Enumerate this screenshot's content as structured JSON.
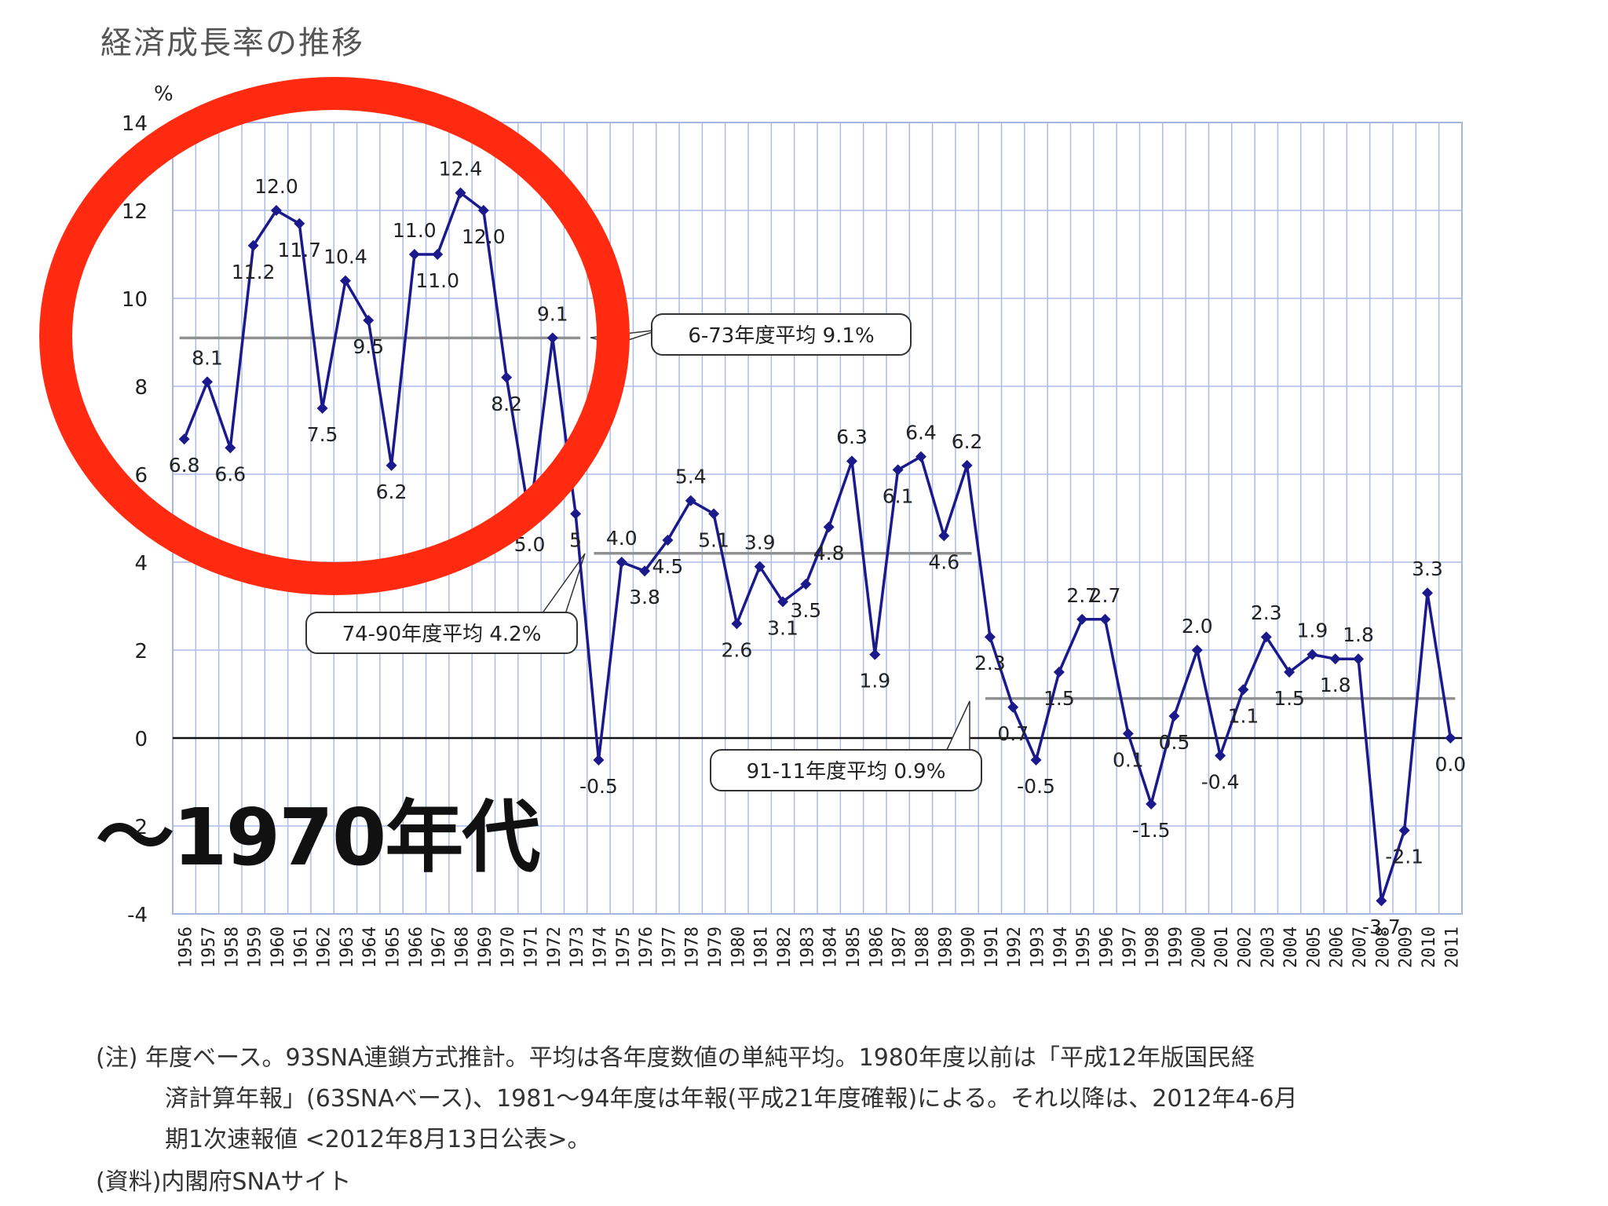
{
  "title": "経済成長率の推移",
  "notes": [
    "(注) 年度ベース。93SNA連鎖方式推計。平均は各年度数値の単純平均。1980年度以前は「平成12年版国民経",
    "済計算年報」(63SNAベース)、1981〜94年度は年報(平成21年度確報)による。それ以降は、2012年4-6月",
    "期1次速報値 <2012年8月13日公表>。"
  ],
  "source": "(資料)内閣府SNAサイト",
  "overlay_label": "〜1970年代",
  "colors": {
    "line": "#1a1a8c",
    "grid": "#aabbe8",
    "avg": "#909090",
    "circle": "#ff2a10"
  },
  "chart_data": {
    "type": "line",
    "ylabel": "%",
    "ylim": [
      -4,
      14
    ],
    "yticks": [
      -4,
      -2,
      0,
      2,
      4,
      6,
      8,
      10,
      12,
      14
    ],
    "grid": true,
    "x": [
      "1956",
      "1957",
      "1958",
      "1959",
      "1960",
      "1961",
      "1962",
      "1963",
      "1964",
      "1965",
      "1966",
      "1967",
      "1968",
      "1969",
      "1970",
      "1971",
      "1972",
      "1973",
      "1974",
      "1975",
      "1976",
      "1977",
      "1978",
      "1979",
      "1980",
      "1981",
      "1982",
      "1983",
      "1984",
      "1985",
      "1986",
      "1987",
      "1988",
      "1989",
      "1990",
      "1991",
      "1992",
      "1993",
      "1994",
      "1995",
      "1996",
      "1997",
      "1998",
      "1999",
      "2000",
      "2001",
      "2002",
      "2003",
      "2004",
      "2005",
      "2006",
      "2007",
      "2008",
      "2009",
      "2010",
      "2011"
    ],
    "values": [
      6.8,
      8.1,
      6.6,
      11.2,
      12.0,
      11.7,
      7.5,
      10.4,
      9.5,
      6.2,
      11.0,
      11.0,
      12.4,
      12.0,
      8.2,
      5.0,
      9.1,
      5.1,
      -0.5,
      4.0,
      3.8,
      4.5,
      5.4,
      5.1,
      2.6,
      3.9,
      3.1,
      3.5,
      4.8,
      6.3,
      1.9,
      6.1,
      6.4,
      4.6,
      6.2,
      2.3,
      0.7,
      -0.5,
      1.5,
      2.7,
      2.7,
      0.1,
      -1.5,
      0.5,
      2.0,
      -0.4,
      1.1,
      2.3,
      1.5,
      1.9,
      1.8,
      1.8,
      -3.7,
      -2.1,
      3.3,
      0.0
    ],
    "labels": [
      "6.8",
      "8.1",
      "6.6",
      "11.2",
      "12.0",
      "11.7",
      "7.5",
      "10.4",
      "9.5",
      "6.2",
      "11.0",
      "11.0",
      "12.4",
      "12.0",
      "8.2",
      "5.0",
      "9.1",
      "5",
      "-0.5",
      "4.0",
      "3.8",
      "4.5",
      "5.4",
      "5.1",
      "2.6",
      "3.9",
      "3.1",
      "3.5",
      "4.8",
      "6.3",
      "1.9",
      "6.1",
      "6.4",
      "4.6",
      "6.2",
      "2.3",
      "0.7",
      "-0.5",
      "1.5",
      "2.7",
      "2.7",
      "0.1",
      "-1.5",
      "0.5",
      "2.0",
      "-0.4",
      "1.1",
      "2.3",
      "1.5",
      "1.9",
      "1.8",
      "1.8",
      "-3.7",
      "-2.1",
      "3.3",
      "0.0"
    ],
    "averages": [
      {
        "label": "6-73年度平均 9.1%",
        "value": 9.1,
        "from": "1956",
        "to": "1973"
      },
      {
        "label": "74-90年度平均 4.2%",
        "value": 4.2,
        "from": "1974",
        "to": "1990"
      },
      {
        "label": "91-11年度平均 0.9%",
        "value": 0.9,
        "from": "1991",
        "to": "2011"
      }
    ]
  }
}
